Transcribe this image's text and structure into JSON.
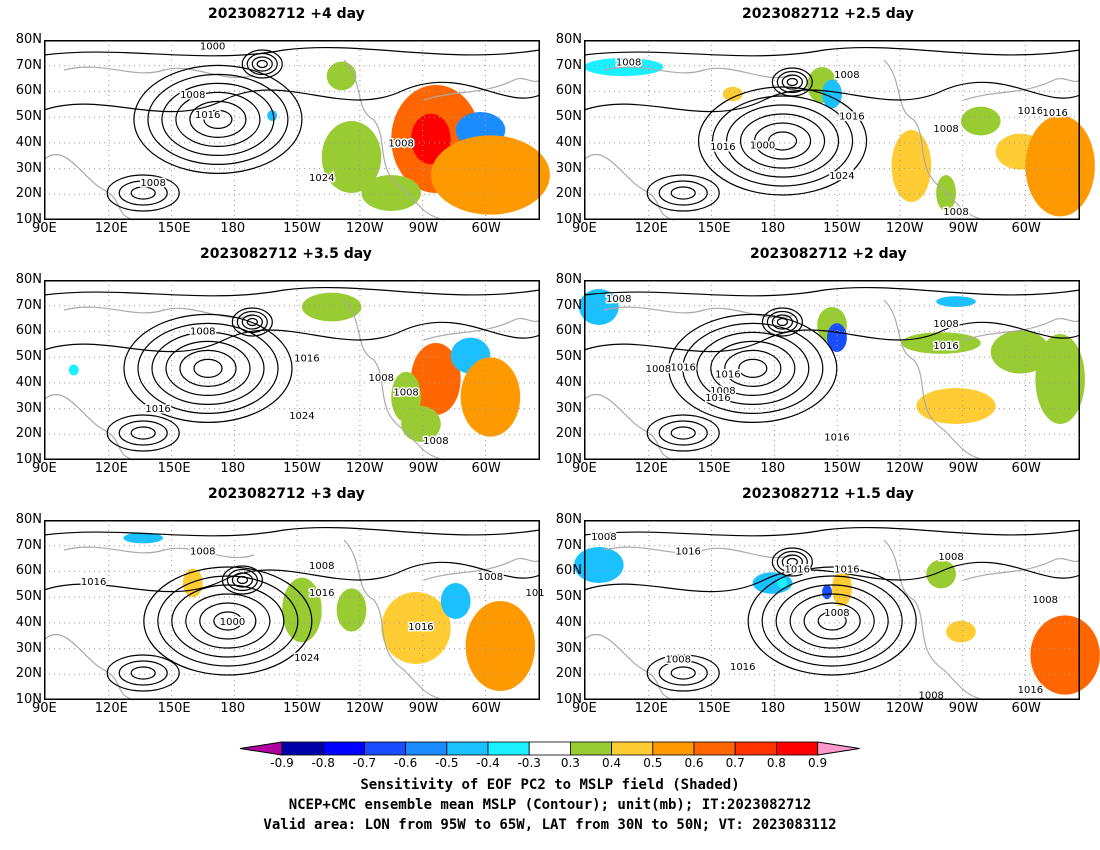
{
  "panels": [
    {
      "title": "2023082712 +4 day",
      "labels": [
        "1000",
        "1008",
        "1016",
        "1024",
        "1008",
        "1008"
      ]
    },
    {
      "title": "2023082712 +2.5 day",
      "labels": [
        "1008",
        "1008",
        "1016",
        "1000",
        "1016",
        "1024",
        "1016",
        "1008",
        "1008",
        "1016"
      ]
    },
    {
      "title": "2023082712 +3.5 day",
      "labels": [
        "1008",
        "1016",
        "1016",
        "1024",
        "1008",
        "1008",
        "1008"
      ]
    },
    {
      "title": "2023082712 +2 day",
      "labels": [
        "1008",
        "1016",
        "1008",
        "1016",
        "1008",
        "1016",
        "1016",
        "1016",
        "1008"
      ]
    },
    {
      "title": "2023082712 +3 day",
      "labels": [
        "1008",
        "1016",
        "1008",
        "1016",
        "1000",
        "1024",
        "1016",
        "1008",
        "101"
      ]
    },
    {
      "title": "2023082712 +1.5 day",
      "labels": [
        "1008",
        "1016",
        "1016",
        "1016",
        "1008",
        "1008",
        "1016",
        "1008",
        "1008",
        "1016",
        "1008"
      ]
    }
  ],
  "axes": {
    "lat_labels": [
      "80N",
      "70N",
      "60N",
      "50N",
      "40N",
      "30N",
      "20N",
      "10N"
    ],
    "lon_labels": [
      "90E",
      "120E",
      "150E",
      "180",
      "150W",
      "120W",
      "90W",
      "60W"
    ]
  },
  "colorbar": {
    "tick_labels": [
      "-0.9",
      "-0.8",
      "-0.7",
      "-0.6",
      "-0.5",
      "-0.4",
      "-0.3",
      "0.3",
      "0.4",
      "0.5",
      "0.6",
      "0.7",
      "0.8",
      "0.9"
    ],
    "colors": [
      "#b0009e",
      "#0000a8",
      "#0000ff",
      "#1a4dff",
      "#1a8cff",
      "#1ac0ff",
      "#1af0ff",
      "#ffffff",
      "#99cc33",
      "#ffcc33",
      "#ff9900",
      "#ff6600",
      "#ff3300",
      "#ff0000",
      "#ff99cc"
    ]
  },
  "captions": {
    "line1": "Sensitivity of EOF PC2 to MSLP field (Shaded)",
    "line2": "NCEP+CMC ensemble mean MSLP (Contour); unit(mb); IT:2023082712",
    "line3": "Valid area: LON from 95W to 65W, LAT from 30N to 50N; VT: 2023083112"
  }
}
